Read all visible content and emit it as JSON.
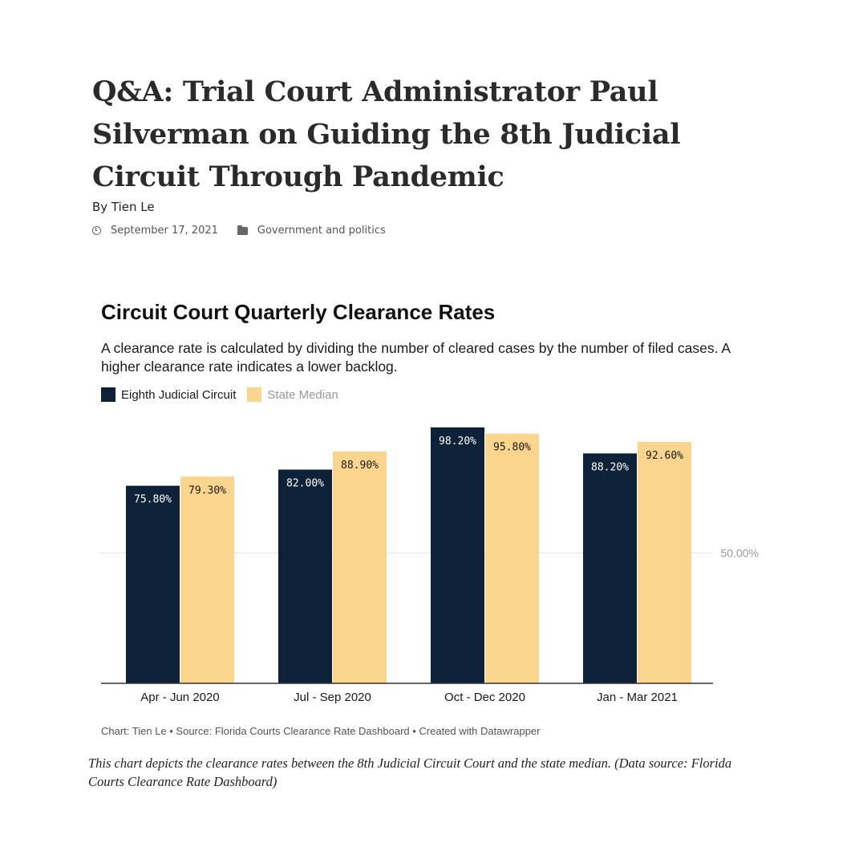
{
  "article": {
    "title": "Q&A: Trial Court Administrator Paul Silverman on Guiding the 8th Judicial Circuit Through Pandemic",
    "byline": "By Tien Le",
    "date": "September 17, 2021",
    "category": "Government and politics"
  },
  "chart_data": {
    "type": "bar",
    "title": "Circuit Court Quarterly Clearance Rates",
    "subtitle": "A clearance rate is calculated by dividing the number of cleared cases by the number of filed cases. A higher clearance rate indicates a lower backlog.",
    "categories": [
      "Apr - Jun 2020",
      "Jul - Sep 2020",
      "Oct - Dec 2020",
      "Jan - Mar 2021"
    ],
    "series": [
      {
        "name": "Eighth Judicial Circuit",
        "color": "#0d2138",
        "values": [
          75.8,
          82.0,
          98.2,
          88.2
        ],
        "labels": [
          "75.80%",
          "82.00%",
          "98.20%",
          "88.20%"
        ]
      },
      {
        "name": "State Median",
        "color": "#fbd48d",
        "values": [
          79.3,
          88.9,
          95.8,
          92.6
        ],
        "labels": [
          "79.30%",
          "88.90%",
          "95.80%",
          "92.60%"
        ]
      }
    ],
    "ylim": [
      0,
      100
    ],
    "gridlines": [
      {
        "value": 50,
        "label": "50.00%"
      }
    ],
    "legend_position": "top-left",
    "xlabel": "",
    "ylabel": ""
  },
  "footer": "Chart: Tien Le • Source: Florida Courts Clearance Rate Dashboard • Created with Datawrapper",
  "caption": "This chart depicts the clearance rates between the 8th Judicial Circuit Court and the state median. (Data source: Florida Courts Clearance Rate Dashboard)"
}
